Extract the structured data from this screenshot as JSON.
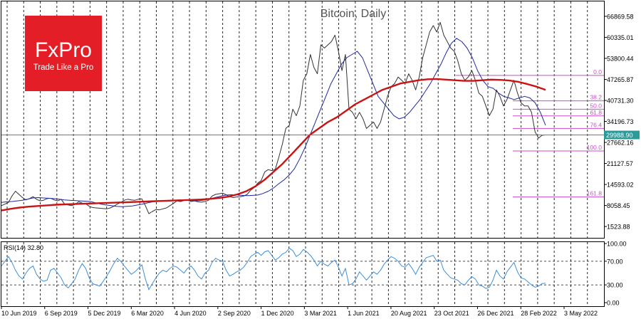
{
  "chart_data": {
    "type": "line",
    "title": "Bitcoin, Daily",
    "logo": {
      "brand": "FxPro",
      "tagline": "Trade Like a Pro"
    },
    "colors": {
      "price": "#333333",
      "ma_fast": "#1f2aa0",
      "ma_slow": "#c81414",
      "fib": "#c84fc8",
      "current_line": "#2a9a9a",
      "current_label_bg": "#2a9a9a",
      "rsi": "#3d8fd8",
      "grid": "#000000"
    },
    "y_axis": {
      "ticks": [
        "66869.58",
        "60335.01",
        "53800.44",
        "47265.87",
        "40731.30",
        "34196.73",
        "27662.16",
        "21127.57",
        "14593.02",
        "8058.45",
        "1523.88"
      ],
      "tick_values": [
        66869.58,
        60335.01,
        53800.44,
        47265.87,
        40731.3,
        34196.73,
        27662.16,
        21127.57,
        14593.02,
        8058.45,
        1523.88
      ],
      "range": [
        -2000,
        71500
      ]
    },
    "x_axis": {
      "labels": [
        "10 Jun 2019",
        "6 Sep 2019",
        "5 Dec 2019",
        "6 Mar 2020",
        "4 Jun 2020",
        "2 Sep 2020",
        "1 Dec 2020",
        "3 Mar 2021",
        "1 Jun 2021",
        "20 Aug 2021",
        "23 Oct 2021",
        "26 Dec 2021",
        "28 Feb 2022",
        "3 May 2022"
      ]
    },
    "current_price": {
      "value": 29988.9,
      "label": "29988.90"
    },
    "price_series": {
      "name": "",
      "x_step_days": 7,
      "values": [
        8000,
        8500,
        9000,
        11000,
        12500,
        11500,
        10500,
        9800,
        10200,
        10800,
        10000,
        9500,
        9700,
        10200,
        10300,
        9800,
        9500,
        10000,
        8500,
        8200,
        8000,
        8400,
        9200,
        8800,
        8600,
        7800,
        7400,
        7300,
        7200,
        7100,
        7000,
        7300,
        7800,
        8500,
        9000,
        9700,
        10000,
        9800,
        9700,
        10000,
        10100,
        8000,
        5500,
        6200,
        6800,
        6700,
        7000,
        7300,
        8000,
        8700,
        9500,
        9300,
        9600,
        9700,
        9300,
        9500,
        9200,
        9100,
        9300,
        9700,
        11000,
        11500,
        11700,
        11900,
        11400,
        10800,
        10500,
        10700,
        10800,
        11000,
        11500,
        12800,
        13600,
        15000,
        15800,
        18500,
        19200,
        18900,
        19300,
        23000,
        27000,
        32000,
        33000,
        38000,
        36000,
        39000,
        47000,
        49000,
        55000,
        51000,
        49000,
        58000,
        57000,
        58000,
        59000,
        61000,
        56000,
        50000,
        55000,
        38000,
        37000,
        35000,
        37000,
        35000,
        32000,
        33000,
        34000,
        32000,
        34000,
        38000,
        42000,
        45000,
        46000,
        48000,
        47000,
        46000,
        49000,
        47000,
        44000,
        48000,
        54000,
        58000,
        62000,
        64000,
        62000,
        65000,
        61000,
        59000,
        57000,
        56000,
        53000,
        49000,
        47000,
        48000,
        50000,
        47000,
        43000,
        42000,
        39000,
        36000,
        38000,
        44000,
        42000,
        39000,
        41000,
        44000,
        47000,
        43000,
        40000,
        39000,
        39000,
        37000,
        31000,
        29000,
        29900,
        29988.9
      ]
    },
    "ma_fast_series": {
      "name": "",
      "values": [
        9000,
        9200,
        9300,
        9500,
        9700,
        10000,
        10400,
        10500,
        10400,
        10300,
        10200,
        10000,
        9800,
        9700,
        9600,
        9500,
        9400,
        9300,
        8900,
        8500,
        8200,
        8000,
        7800,
        7700,
        7800,
        7900,
        8200,
        8500,
        8900,
        9200,
        9400,
        9500,
        9600,
        9700,
        9800,
        9700,
        9600,
        9500,
        9600,
        9800,
        10200,
        10600,
        11000,
        11300,
        11400,
        11300,
        11200,
        11100,
        11200,
        11300,
        11800,
        12500,
        13500,
        14800,
        16000,
        17500,
        19500,
        22500,
        26000,
        30000,
        34000,
        38000,
        42000,
        46000,
        49000,
        52000,
        54000,
        55000,
        56000,
        54000,
        50000,
        46000,
        42000,
        40000,
        38000,
        36000,
        35000,
        35500,
        37000,
        39000,
        41000,
        43500,
        46000,
        49000,
        52000,
        55500,
        58500,
        60000,
        59000,
        57000,
        54000,
        50000,
        47000,
        45000,
        44500,
        43000,
        42000,
        41500,
        41000,
        41500,
        42000,
        41500,
        40000,
        37000,
        33000
      ]
    },
    "ma_slow_series": {
      "name": "",
      "values": [
        6500,
        7000,
        7400,
        7700,
        7900,
        8100,
        8300,
        8400,
        8500,
        8600,
        8700,
        8800,
        8900,
        9000,
        9100,
        9200,
        9300,
        9400,
        9500,
        9600,
        9700,
        9800,
        9900,
        10100,
        10400,
        10800,
        11500,
        12500,
        14000,
        16000,
        18500,
        21000,
        24000,
        27000,
        30000,
        32000,
        34000,
        35500,
        37500,
        39500,
        41000,
        42500,
        44000,
        45000,
        46000,
        46500,
        47000,
        47300,
        47400,
        47200,
        47000,
        46800,
        46800,
        47000,
        47200,
        47100,
        46900,
        46500,
        45800,
        45000,
        44000
      ]
    },
    "fib_levels": [
      {
        "label": "0.0",
        "value": 48500
      },
      {
        "label": "38.2",
        "value": 40600
      },
      {
        "label": "50.0",
        "value": 38000
      },
      {
        "label": "61.8",
        "value": 35900
      },
      {
        "label": "76.4",
        "value": 32000
      },
      {
        "label": "100.0",
        "value": 25000
      },
      {
        "label": "161.8",
        "value": 10700
      }
    ],
    "rsi": {
      "label": "RSI(14) 32.80",
      "ticks": [
        "100.00",
        "70.00",
        "30.00",
        "0.00"
      ],
      "tick_values": [
        100,
        70,
        30,
        0
      ],
      "range": [
        0,
        100
      ],
      "values": [
        62,
        70,
        78,
        68,
        55,
        45,
        40,
        50,
        58,
        62,
        48,
        40,
        36,
        38,
        55,
        58,
        50,
        42,
        30,
        25,
        32,
        40,
        55,
        66,
        58,
        42,
        32,
        30,
        28,
        36,
        45,
        55,
        66,
        75,
        70,
        62,
        55,
        48,
        52,
        58,
        64,
        40,
        22,
        32,
        42,
        50,
        55,
        52,
        58,
        62,
        60,
        55,
        50,
        58,
        62,
        55,
        45,
        40,
        50,
        55,
        68,
        75,
        72,
        70,
        55,
        45,
        48,
        52,
        55,
        60,
        68,
        78,
        82,
        85,
        80,
        86,
        88,
        80,
        72,
        76,
        82,
        85,
        92,
        88,
        78,
        82,
        90,
        86,
        80,
        72,
        62,
        70,
        65,
        62,
        68,
        72,
        60,
        45,
        58,
        30,
        32,
        40,
        52,
        45,
        38,
        45,
        52,
        48,
        55,
        65,
        72,
        78,
        75,
        70,
        62,
        60,
        66,
        58,
        48,
        60,
        68,
        76,
        78,
        80,
        70,
        72,
        55,
        48,
        42,
        40,
        38,
        32,
        30,
        38,
        44,
        40,
        30,
        28,
        24,
        26,
        38,
        55,
        45,
        40,
        52,
        60,
        68,
        52,
        42,
        40,
        35,
        30,
        26,
        28,
        32,
        32.8
      ]
    }
  }
}
